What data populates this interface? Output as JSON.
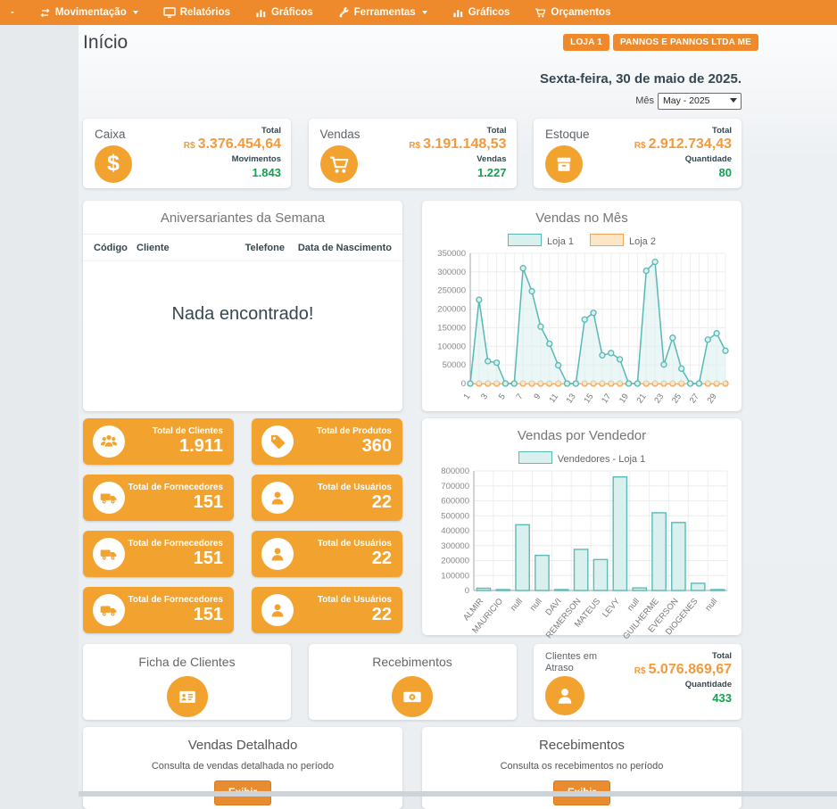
{
  "nav": {
    "items": [
      {
        "label": "-"
      },
      {
        "label": "Movimentação"
      },
      {
        "label": "Relatórios"
      },
      {
        "label": "Gráficos"
      },
      {
        "label": "Ferramentas"
      },
      {
        "label": "Gráficos"
      },
      {
        "label": "Orçamentos"
      }
    ]
  },
  "header": {
    "title": "Início",
    "badges": [
      "LOJA 1",
      "PANNOS E PANNOS LTDA ME"
    ],
    "date": "Sexta-feira, 30 de maio de 2025.",
    "month_label": "Mês",
    "month_value": "May - 2025"
  },
  "summary_cards": [
    {
      "title": "Caixa",
      "metric1_label": "Total",
      "prefix": "R$",
      "metric1_value": "3.376.454,64",
      "metric2_label": "Movimentos",
      "metric2_value": "1.843"
    },
    {
      "title": "Vendas",
      "metric1_label": "Total",
      "prefix": "R$",
      "metric1_value": "3.191.148,53",
      "metric2_label": "Vendas",
      "metric2_value": "1.227"
    },
    {
      "title": "Estoque",
      "metric1_label": "Total",
      "prefix": "R$",
      "metric1_value": "2.912.734,43",
      "metric2_label": "Quantidade",
      "metric2_value": "80"
    }
  ],
  "birthdays": {
    "title": "Aniversariantes da Semana",
    "columns": [
      "Código",
      "Cliente",
      "Telefone",
      "Data de Nascimento"
    ],
    "empty_message": "Nada encontrado!"
  },
  "tiles": [
    {
      "label": "Total de Clientes",
      "value": "1.911",
      "icon": "people-icon"
    },
    {
      "label": "Total de Produtos",
      "value": "360",
      "icon": "tag-icon"
    },
    {
      "label": "Total de Fornecedores",
      "value": "151",
      "icon": "truck-icon"
    },
    {
      "label": "Total de Usuários",
      "value": "22",
      "icon": "user-icon"
    },
    {
      "label": "Total de Fornecedores",
      "value": "151",
      "icon": "truck-icon"
    },
    {
      "label": "Total de Usuários",
      "value": "22",
      "icon": "user-icon"
    },
    {
      "label": "Total de Fornecedores",
      "value": "151",
      "icon": "truck-icon"
    },
    {
      "label": "Total de Usuários",
      "value": "22",
      "icon": "user-icon"
    }
  ],
  "info_cards": {
    "ficha": {
      "title": "Ficha de Clientes"
    },
    "recebimentos": {
      "title": "Recebimentos"
    }
  },
  "overdue_card": {
    "title": "Clientes em Atraso",
    "total_label": "Total",
    "prefix": "R$",
    "total_value": "5.076.869,67",
    "qty_label": "Quantidade",
    "qty_value": "433"
  },
  "report_panels": [
    {
      "title": "Vendas Detalhado",
      "description": "Consulta de vendas detalhada no período",
      "button": "Exibir"
    },
    {
      "title": "Recebimentos",
      "description": "Consulta os recebimentos no período",
      "button": "Exibir"
    }
  ],
  "colors": {
    "accent_orange": "#ee8a2b",
    "tile_gold": "#f2a32f",
    "money_orange": "#f29a3d",
    "positive_green": "#12a14f",
    "teal_series": "#58b8b4",
    "orange_series": "#f0a45c"
  },
  "chart_data": [
    {
      "type": "area",
      "title": "Vendas no Mês",
      "x": [
        1,
        2,
        3,
        4,
        5,
        6,
        7,
        8,
        9,
        10,
        11,
        12,
        13,
        14,
        15,
        16,
        17,
        18,
        19,
        20,
        21,
        22,
        23,
        24,
        25,
        26,
        27,
        28,
        29,
        30
      ],
      "series": [
        {
          "name": "Loja 2",
          "color": "#f0a45c",
          "fill": "#fbe6c8",
          "values": [
            0,
            0,
            0,
            0,
            0,
            0,
            0,
            0,
            0,
            0,
            0,
            0,
            0,
            0,
            0,
            0,
            0,
            0,
            0,
            0,
            0,
            0,
            0,
            0,
            0,
            0,
            0,
            0,
            0,
            0
          ]
        },
        {
          "name": "Loja 1",
          "color": "#58b8b4",
          "fill": "#d9f0ef",
          "values": [
            0,
            225000,
            60000,
            56000,
            0,
            0,
            310000,
            248000,
            153000,
            107000,
            49000,
            0,
            0,
            172000,
            190000,
            76000,
            82000,
            65000,
            0,
            0,
            303000,
            327000,
            51000,
            123000,
            40000,
            0,
            0,
            118000,
            135000,
            88000
          ]
        }
      ],
      "legend_order": [
        "Loja 1",
        "Loja 2"
      ],
      "ylim": [
        0,
        350000
      ],
      "ytick_step": 50000,
      "grid": true,
      "legend_position": "top"
    },
    {
      "type": "bar",
      "title": "Vendas por Vendedor",
      "legend": [
        "Vendedores - Loja 1"
      ],
      "categories": [
        "ALMIR",
        "MAURICIO",
        "null",
        "null",
        "DAVI",
        "REMERSON",
        "MATEUS",
        "LEVY",
        "null",
        "GUILHERME",
        "EVERSON",
        "DIOGENES",
        "null"
      ],
      "values": [
        15000,
        1000,
        440000,
        235000,
        6000,
        275000,
        207000,
        760000,
        17000,
        520000,
        455000,
        48000,
        2000
      ],
      "color": "#5abbb7",
      "fill": "#d9f0ef",
      "ylim": [
        0,
        800000
      ],
      "ytick_step": 100000,
      "grid": true,
      "legend_position": "top"
    }
  ]
}
